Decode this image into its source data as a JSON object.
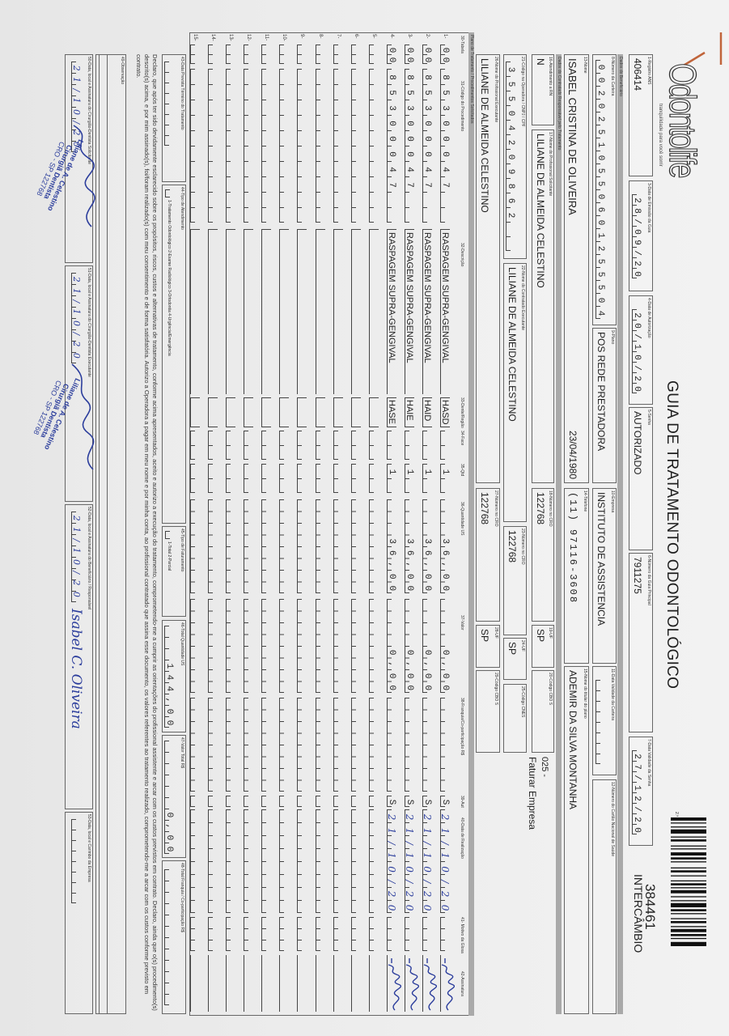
{
  "header": {
    "logo": "Odontolife",
    "tagline": "tranquilidade para você sorrir",
    "title": "GUIA DE TRATAMENTO ODONTOLÓGICO",
    "page_mark": "2.ª",
    "guide_number": "384461",
    "guide_type": "INTERCÂMBIO"
  },
  "guide": {
    "f1": {
      "label": "1-Registro ANS",
      "value": "406414"
    },
    "f3": {
      "label": "3-Data de Emissão da Guia",
      "value": "28/09/20"
    },
    "f4": {
      "label": "4-Data de Autorização",
      "value": "20/10/20"
    },
    "f5": {
      "label": "5-Senha",
      "value": "AUTORIZADO"
    },
    "f6": {
      "label": "6-Número da Guia Principal",
      "value": "7911275"
    },
    "f7": {
      "label": "7-Data Validade da Senha",
      "value": "27/12/20"
    }
  },
  "beneficiary": {
    "section": "Dados do Beneficiário",
    "f8": {
      "label": "8-Número da Carteira",
      "value": "00202510550601255504"
    },
    "f9": {
      "label": "9-Plano",
      "value": "POS REDE PRESTADORA"
    },
    "f10": {
      "label": "10-Empresa",
      "value": "INSTITUTO DE ASSISTENCIA"
    },
    "f11": {
      "label": "11-Data Validade da Carteira",
      "value": ""
    },
    "f12": {
      "label": "12-Número do Cartão Nacional de Saúde",
      "value": ""
    },
    "f13": {
      "label": "13-Nome",
      "value": "ISABEL CRISTINA DE OLIVEIRA",
      "birth_date": "23/04/1980"
    },
    "f14": {
      "label": "14-Telefone",
      "value": "(11) 97116-3608"
    },
    "f15": {
      "label": "15-Nome do titular do plano",
      "value": "ADEMIR DA SILVA MONTANHA"
    }
  },
  "provider": {
    "section": "Dados do Contratado Responsável pelo Tratamento",
    "f16": {
      "label": "16-Atendimento a RN",
      "value": "N"
    },
    "f17": {
      "label": "17-Nome do Profissional Solicitante",
      "value": "LILIANE DE ALMEIDA CELESTINO"
    },
    "f18": {
      "label": "18-Número no CRO",
      "value": "122768"
    },
    "f19": {
      "label": "19-UF",
      "value": "SP"
    },
    "f20": {
      "label": "20-Código CBO S",
      "value": ""
    },
    "billing_code": "025 -",
    "billing_text": "Faturar Empresa",
    "f21": {
      "label": "21-Código na Operadora / CNPJ / CPF",
      "value": "35504209862"
    },
    "f22": {
      "label": "22-Nome do Contratado Executante",
      "value": "LILIANE DE ALMEIDA CELESTINO"
    },
    "f23": {
      "label": "23-Número no CRO",
      "value": "122768"
    },
    "f24": {
      "label": "24-UF",
      "value": "SP"
    },
    "f25": {
      "label": "25-Código CNES",
      "value": ""
    },
    "f26": {
      "label": "26-Nome do Profissional Executante",
      "value": "LILIANE DE ALMEIDA CELESTINO"
    },
    "f27": {
      "label": "27-Número no CRO",
      "value": "122768"
    },
    "f28": {
      "label": "28-UF",
      "value": "SP"
    },
    "f29": {
      "label": "29-Código CBO S",
      "value": ""
    }
  },
  "table": {
    "section": "Plano de Tratamento / Procedimentos Solicitados",
    "headers": {
      "tabela": "30-Tabela",
      "code": "31-Código do Procedimento",
      "description": "32-Descrição",
      "tooth": "33-Dente/Região",
      "face": "34-Face",
      "qty": "35-Qtd",
      "us": "36-Quantidade US",
      "value": "37-Valor",
      "copay": "38-Franquia/Co-participação R$",
      "aut": "39-Aut",
      "date": "40-Data de Realização",
      "glosa": "41- Motivo da Glosa",
      "signature": "42-Assinatura"
    },
    "row_numbers": [
      "1-",
      "2-",
      "3-",
      "4-",
      "5-",
      "6-",
      "7-",
      "8-",
      "9-",
      "10-",
      "11-",
      "12-",
      "13-",
      "14-",
      "15-"
    ],
    "procedures": [
      {
        "tabela": "00",
        "code": "85300047",
        "description": "RASPAGEM SUPRA-GENGIVAL",
        "tooth": "HASD",
        "face": "",
        "qty": "1",
        "us": "36,00",
        "value": "0,00",
        "copay": "",
        "aut": "S",
        "date": "21/10/20"
      },
      {
        "tabela": "00",
        "code": "85300047",
        "description": "RASPAGEM SUPRA-GENGIVAL",
        "tooth": "HAID",
        "face": "",
        "qty": "1",
        "us": "36,00",
        "value": "0,00",
        "copay": "",
        "aut": "S",
        "date": "21/10/20"
      },
      {
        "tabela": "00",
        "code": "85300047",
        "description": "RASPAGEM SUPRA-GENGIVAL",
        "tooth": "HAIE",
        "face": "",
        "qty": "1",
        "us": "36,00",
        "value": "0,00",
        "copay": "",
        "aut": "S",
        "date": "21/10/20"
      },
      {
        "tabela": "00",
        "code": "85300047",
        "description": "RASPAGEM SUPRA-GENGIVAL",
        "tooth": "HASE",
        "face": "",
        "qty": "1",
        "us": "36,00",
        "value": "0,00",
        "copay": "",
        "aut": "S",
        "date": "21/10/20"
      }
    ]
  },
  "totals": {
    "f43": {
      "label": "43-Data Prevista Término do Tratamento",
      "value": ""
    },
    "f44": {
      "label": "44-Tipo de Atendimento",
      "options": "1-Tratamento Odontológico 2-Exame Radiológico 3-Ortodontia 4-Urgência/Emergência"
    },
    "f45": {
      "label": "45-Tipo de Faturamento",
      "options": "1-Total 2-Parcial"
    },
    "f46": {
      "label": "46-Total Quantidade US",
      "value": "144,00"
    },
    "f47": {
      "label": "47-Valor Total R$",
      "value": "0,00"
    },
    "f48": {
      "label": "48-Total Franquia / Co-participação R$",
      "value": ""
    }
  },
  "declaration": "Declaro, que após ter sido devidamente esclarecido sobre os propósitos, riscos, custos e alternativas de tratamento, conforme acima apresentados, aceito e autorizo a execução do tratamento, comprometendo-me a cumprir as orientações do profissional assistente e arcar com os custos previstos em contrato. Declaro, ainda que o(s) procedimento(s) descrito(s) acima, e por mim assinado(s), foi/foram realizado(s) com meu consentimento e de forma satisfatória. Autorizo a Operadora a pagar em meu nome e por minha conta, ao profissional contratado que assina esse documento, os valores referentes ao tratamento realizado, comprometendo-me a arcar com os custos conforme previsto em contrato.",
  "observation": {
    "label": "49-Observação",
    "value": ""
  },
  "signatures": {
    "f50": {
      "label": "50-Data, local e Assinatura do Cirurgião-Dentista Solicitante",
      "date": "21/10/20"
    },
    "f51": {
      "label": "51-Data, local e Assinatura do Cirurgião-Dentista Executante",
      "date": "21/10/20"
    },
    "f52": {
      "label": "52-Data, local e Assinatura do Beneficiário / Responsável",
      "date": "21/10/20",
      "signature": "Isabel C. Oliveira"
    },
    "f53": {
      "label": "53-Data, local e Carimbo da Empresa",
      "date": ""
    },
    "stamp": {
      "name": "Liliane de A. Celestino",
      "role": "Cirurgiã Dentista",
      "cro": "CRO - SP 122768"
    }
  },
  "colors": {
    "ink": "#2b3d9c",
    "section_bar": "#a9a9a9",
    "staple": "#c0643a"
  }
}
